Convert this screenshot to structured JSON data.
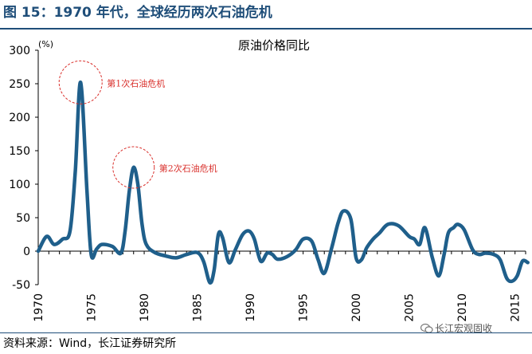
{
  "figure": {
    "title": "图 15：1970 年代，全球经历两次石油危机",
    "source": "资料来源：Wind，长江证券研究所",
    "watermark": "长江宏观固收"
  },
  "colors": {
    "title": "#1f4e79",
    "line": "#1f5f8b",
    "annotation": "#d9302c"
  },
  "chart_data": {
    "type": "line",
    "title": "原油价格同比",
    "ylabel": "(%)",
    "xlabel": "",
    "ylim": [
      -50,
      300
    ],
    "xlim": [
      1970,
      2016
    ],
    "yticks": [
      300,
      250,
      200,
      150,
      100,
      50,
      0,
      -50
    ],
    "xticks": [
      1970,
      1975,
      1980,
      1985,
      1990,
      1995,
      2000,
      2005,
      2010,
      2015
    ],
    "grid": false,
    "legend": "none",
    "series": [
      {
        "x": [
          1970,
          1970.8,
          1971.5,
          1972.3,
          1973,
          1973.5,
          1974,
          1974.6,
          1975,
          1975.5,
          1976,
          1977,
          1977.8,
          1978.2,
          1978.6,
          1979,
          1979.4,
          1979.8,
          1980.2,
          1981,
          1982,
          1983,
          1984,
          1985,
          1985.6,
          1986.2,
          1986.6,
          1987,
          1987.4,
          1988,
          1988.6,
          1989.3,
          1989.9,
          1990.4,
          1991,
          1991.6,
          1992.1,
          1992.6,
          1993.5,
          1994.3,
          1995,
          1995.8,
          1996.4,
          1997,
          1997.7,
          1998.3,
          1998.8,
          1999.5,
          2000,
          2000.5,
          2001,
          2001.6,
          2002.2,
          2003,
          2004,
          2005,
          2005.5,
          2006,
          2006.5,
          2007.2,
          2007.8,
          2008.3,
          2008.7,
          2009.2,
          2009.6,
          2010.2,
          2011,
          2011.6,
          2012.2,
          2013,
          2013.6,
          2014.2,
          2014.7,
          2015.2,
          2015.7,
          2016.2
        ],
        "y": [
          0,
          22,
          10,
          18,
          30,
          120,
          252,
          90,
          -5,
          3,
          10,
          7,
          -3,
          30,
          90,
          125,
          100,
          40,
          10,
          -2,
          -7,
          -10,
          -5,
          -2,
          -15,
          -47,
          -28,
          25,
          20,
          -17,
          2,
          25,
          30,
          18,
          -15,
          -3,
          -5,
          -12,
          -8,
          2,
          18,
          15,
          -12,
          -33,
          5,
          42,
          60,
          48,
          -10,
          -13,
          5,
          18,
          27,
          40,
          38,
          22,
          18,
          10,
          35,
          -10,
          -37,
          -5,
          27,
          35,
          40,
          32,
          2,
          -5,
          -3,
          -5,
          -13,
          -40,
          -45,
          -37,
          -15,
          -17
        ]
      }
    ],
    "annotations": [
      {
        "text": "第1次石油危机",
        "x": 1974,
        "y": 252
      },
      {
        "text": "第2次石油危机",
        "x": 1979,
        "y": 125
      }
    ]
  }
}
